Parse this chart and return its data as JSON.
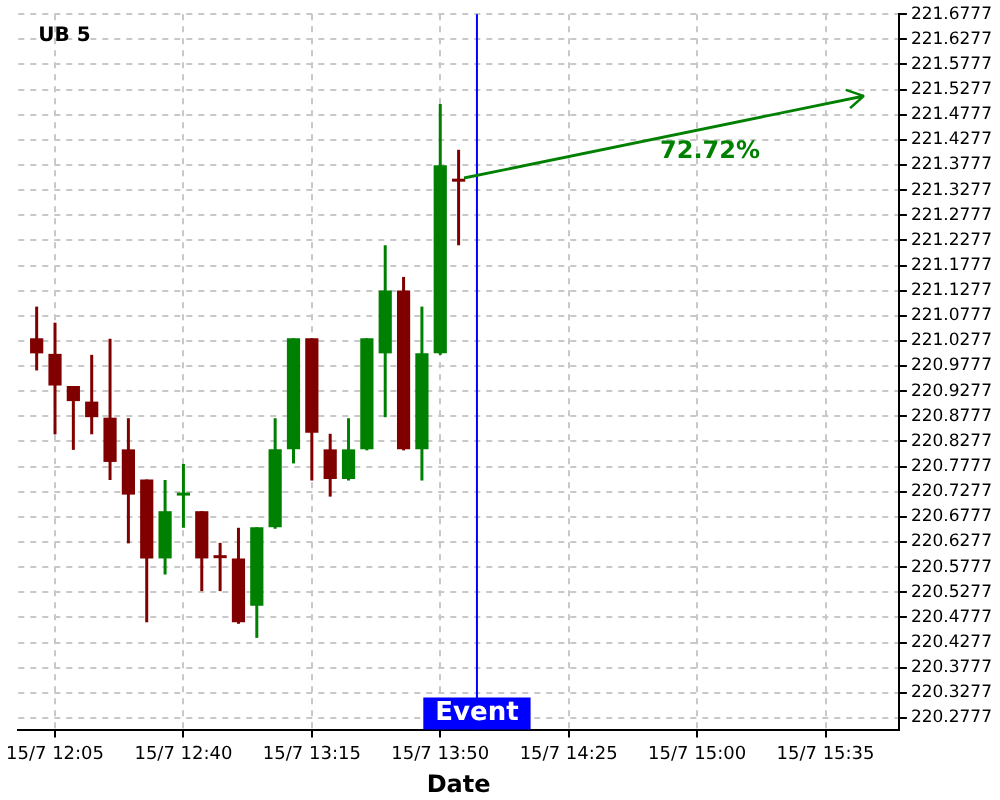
{
  "chart_data": {
    "type": "candlestick",
    "title": "UB 5",
    "xlabel": "Date",
    "x": [
      "--07-15T12:00",
      "--07-15T12:05",
      "--07-15T12:10",
      "--07-15T12:15",
      "--07-15T12:20",
      "--07-15T12:25",
      "--07-15T12:30",
      "--07-15T12:35",
      "--07-15T12:40",
      "--07-15T12:45",
      "--07-15T12:50",
      "--07-15T12:55",
      "--07-15T13:00",
      "--07-15T13:05",
      "--07-15T13:10",
      "--07-15T13:15",
      "--07-15T13:20",
      "--07-15T13:25",
      "--07-15T13:30",
      "--07-15T13:35",
      "--07-15T13:40",
      "--07-15T13:45",
      "--07-15T13:50",
      "--07-15T13:55"
    ],
    "ohlc": [
      [
        221.033,
        221.096,
        220.969,
        221.003
      ],
      [
        221.002,
        221.064,
        220.842,
        220.939
      ],
      [
        220.938,
        220.938,
        220.811,
        220.908
      ],
      [
        220.907,
        221.0,
        220.842,
        220.876
      ],
      [
        220.875,
        221.032,
        220.751,
        220.787
      ],
      [
        220.812,
        220.874,
        220.625,
        220.722
      ],
      [
        220.752,
        220.752,
        220.468,
        220.595
      ],
      [
        220.595,
        220.751,
        220.563,
        220.689
      ],
      [
        220.723,
        220.783,
        220.656,
        220.723
      ],
      [
        220.689,
        220.689,
        220.53,
        220.595
      ],
      [
        220.6,
        220.626,
        220.53,
        220.597
      ],
      [
        220.595,
        220.656,
        220.465,
        220.468
      ],
      [
        220.501,
        220.657,
        220.437,
        220.657
      ],
      [
        220.657,
        220.874,
        220.654,
        220.812
      ],
      [
        220.812,
        221.033,
        220.784,
        221.033
      ],
      [
        221.033,
        221.033,
        220.75,
        220.845
      ],
      [
        220.812,
        220.843,
        220.718,
        220.753
      ],
      [
        220.753,
        220.874,
        220.75,
        220.812
      ],
      [
        220.812,
        221.033,
        220.81,
        221.033
      ],
      [
        221.003,
        221.218,
        220.876,
        221.128
      ],
      [
        221.128,
        221.155,
        220.81,
        220.812
      ],
      [
        220.812,
        221.096,
        220.75,
        221.003
      ],
      [
        221.003,
        221.499,
        221.0,
        221.377
      ],
      [
        221.348,
        221.408,
        221.218,
        221.347
      ]
    ],
    "colors": [
      "#800000",
      "#800000",
      "#800000",
      "#800000",
      "#800000",
      "#800000",
      "#800000",
      "#008000",
      "#008000",
      "#800000",
      "#800000",
      "#800000",
      "#008000",
      "#008000",
      "#008000",
      "#800000",
      "#800000",
      "#008000",
      "#008000",
      "#008000",
      "#800000",
      "#008000",
      "#008000",
      "#800000"
    ],
    "annotations": [
      "72.72%"
    ],
    "ref_lines": [
      {
        "axis": "x",
        "value": "--07-15T14:00",
        "label": "Event",
        "color": "#0000ff"
      }
    ],
    "xlim": [
      "--07-15T11:55",
      "--07-15T15:55"
    ],
    "xticks": [
      {
        "value": "--07-15T12:05",
        "label": "15/7 12:05"
      },
      {
        "value": "--07-15T12:40",
        "label": "15/7 12:40"
      },
      {
        "value": "--07-15T13:15",
        "label": "15/7 13:15"
      },
      {
        "value": "--07-15T13:50",
        "label": "15/7 13:50"
      },
      {
        "value": "--07-15T14:25",
        "label": "15/7 14:25"
      },
      {
        "value": "--07-15T15:00",
        "label": "15/7 15:00"
      },
      {
        "value": "--07-15T15:35",
        "label": "15/7 15:35"
      }
    ],
    "ylim": [
      220.2545,
      221.6777
    ],
    "yticks": [
      220.2777,
      220.3277,
      220.3777,
      220.4277,
      220.4777,
      220.5277,
      220.5777,
      220.6277,
      220.6777,
      220.7277,
      220.7777,
      220.8277,
      220.8777,
      220.9277,
      220.9777,
      221.0277,
      221.0777,
      221.1277,
      221.1777,
      221.2277,
      221.2777,
      221.3277,
      221.3777,
      221.4277,
      221.4777,
      221.5277,
      221.5777,
      221.6277,
      221.6777
    ],
    "grid": true,
    "legend": false
  }
}
